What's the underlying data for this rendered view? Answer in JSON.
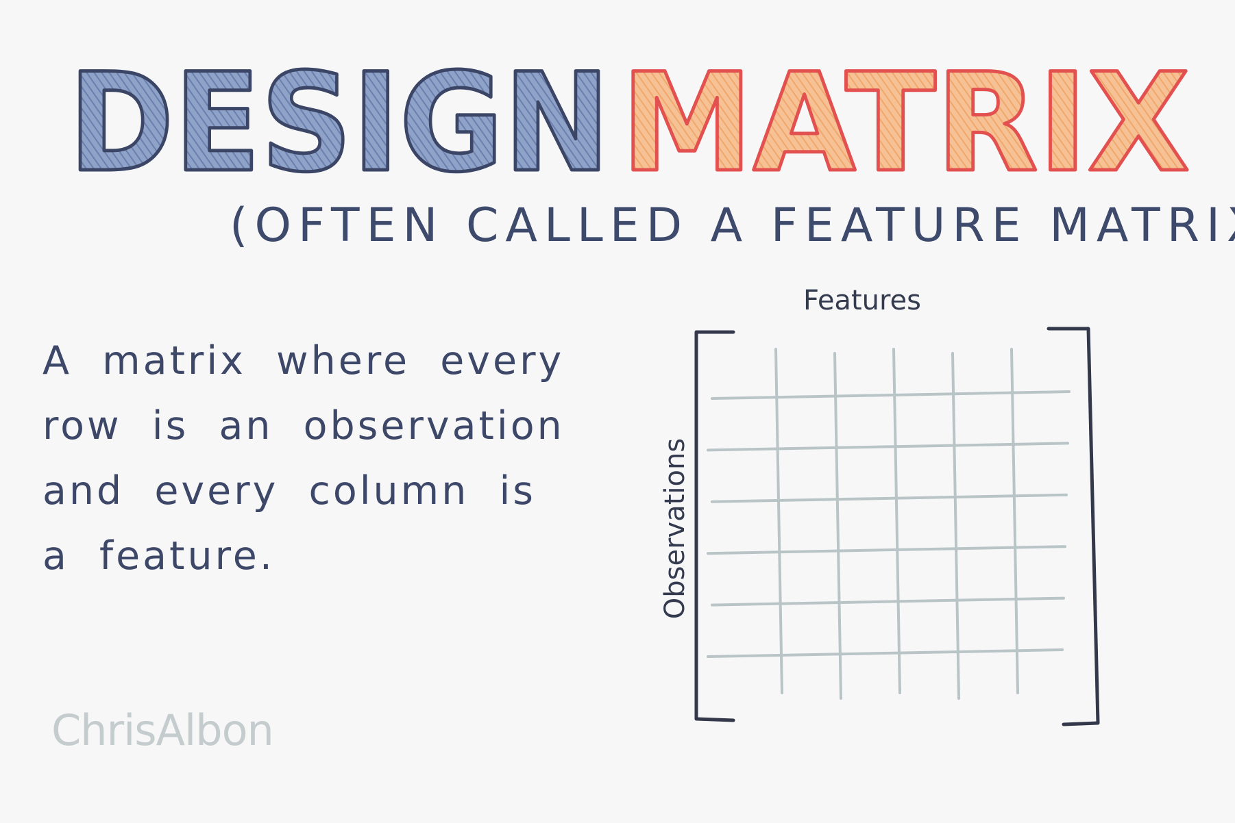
{
  "title": {
    "part1": "DESIGN",
    "part2": "MATRIX",
    "colors": {
      "part1_fill": "#7f93bf",
      "part1_outline": "#3b4566",
      "part2_fill": "#f3b27c",
      "part2_outline": "#e2514f"
    }
  },
  "subtitle": "(OFTEN CALLED A FEATURE MATRIX)",
  "definition": "A matrix where every row is an observation and every column is a feature.",
  "matrix": {
    "top_label": "Features",
    "side_label": "Observations",
    "bracket_color": "#33384b",
    "grid_color": "#b9c4c6",
    "grid_rows": 6,
    "grid_columns": 5
  },
  "signature": "ChrisAlbon"
}
